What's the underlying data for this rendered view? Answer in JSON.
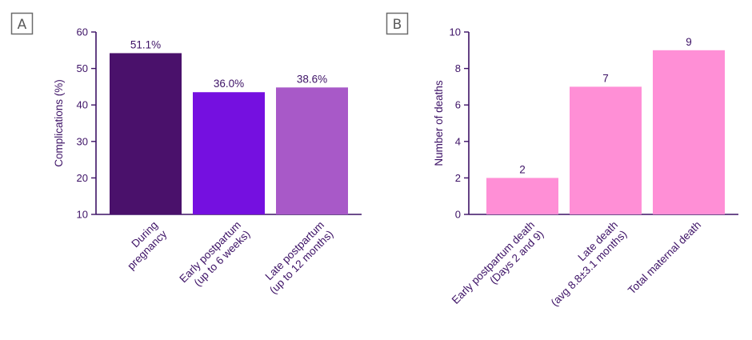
{
  "panels": {
    "a": {
      "label": "A"
    },
    "b": {
      "label": "B"
    }
  },
  "colors": {
    "axis_a": "#3d1266",
    "axis_b": "#3d1266",
    "text": "#3d1266",
    "panel_box": "#6b6b6b"
  },
  "chart_data": [
    {
      "type": "bar",
      "title": "",
      "xlabel": "",
      "ylabel": "Complications (%)",
      "ylim": [
        10,
        60
      ],
      "yticks": [
        10,
        20,
        30,
        40,
        50,
        60
      ],
      "categories": [
        [
          "During",
          "pregnancy"
        ],
        [
          "Early postpartum",
          "(up to 6 weeks)"
        ],
        [
          "Late postpartum",
          "(up to 12 months)"
        ]
      ],
      "values": [
        51.1,
        36.0,
        38.6
      ],
      "bar_tops": [
        54.2,
        43.5,
        44.8
      ],
      "data_labels": [
        "51.1%",
        "36.0%",
        "38.6%"
      ],
      "bar_colors": [
        "#4a116b",
        "#7510e0",
        "#a859c8"
      ],
      "grid": false,
      "legend": "none"
    },
    {
      "type": "bar",
      "title": "",
      "xlabel": "",
      "ylabel": "Number of deaths",
      "ylim": [
        0,
        10
      ],
      "yticks": [
        0,
        2,
        4,
        6,
        8,
        10
      ],
      "categories": [
        [
          "Early postpartum death",
          "(Days 2 and 9)"
        ],
        [
          "Late death",
          "(avg 8.8±3.1 months)"
        ],
        [
          "Total maternal death"
        ]
      ],
      "values": [
        2,
        7,
        9
      ],
      "data_labels": [
        "2",
        "7",
        "9"
      ],
      "bar_colors": [
        "#ff8fd6",
        "#ff8fd6",
        "#ff8fd6"
      ],
      "grid": false,
      "legend": "none"
    }
  ]
}
